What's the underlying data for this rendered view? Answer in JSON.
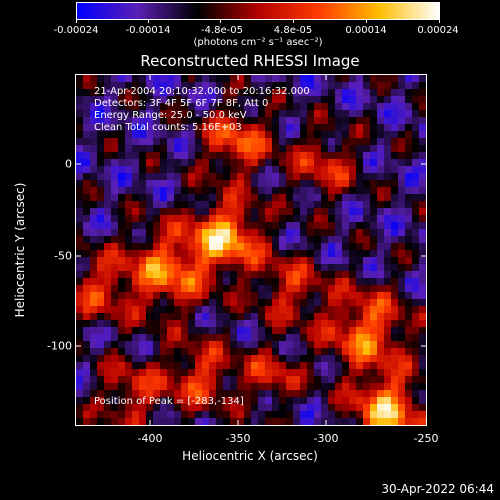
{
  "colorbar": {
    "tick_labels": [
      "-0.00024",
      "-0.00014",
      "-4.8e-05",
      "4.8e-05",
      "0.00014",
      "0.00024"
    ],
    "unit_label": "(photons cm⁻² s⁻¹ asec⁻²)",
    "colors": [
      "#0000ff",
      "#5b1fb6",
      "#000000",
      "#b40000",
      "#ff3a00",
      "#ffbc00",
      "#ffffff"
    ]
  },
  "plot": {
    "title": "Reconstructed RHESSI Image",
    "info": {
      "time_range": "21-Apr-2004 20:10:32.000 to 20:16:32.000",
      "detectors": "Detectors: 3F 4F 5F 6F 7F 8F, Att 0",
      "energy": "Energy Range: 25.0 - 50.0 keV",
      "clean": "Clean    Total counts: 5.16E+03"
    },
    "peak": "Position of Peak = [-283,-134]",
    "x_ticks": [
      "-400",
      "-350",
      "-300",
      "-250"
    ],
    "y_ticks": [
      "0",
      "-50",
      "-100"
    ],
    "xlabel": "Heliocentric X (arcsec)",
    "ylabel": "Heliocentric Y (arcsec)"
  },
  "timestamp": "30-Apr-2022 06:44"
}
